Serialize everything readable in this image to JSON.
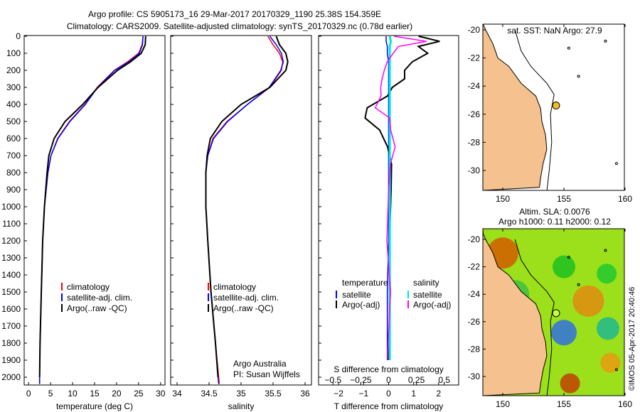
{
  "title": {
    "line1": "Argo profile: CS 5905173_16 29-Mar-2017 20170329_1190 25.38S 154.359E",
    "line2": "Climatology: CARS2009. Satellite-adjusted climatology: synTS_20170329.nc (0.78d earlier)"
  },
  "colors": {
    "climatology": "#ff0000",
    "satellite": "#0000ff",
    "argo": "#000000",
    "sal_sat": "#00e5e5",
    "sal_argo": "#ff00ff",
    "land": "#f5c18f"
  },
  "chart_data": [
    {
      "type": "line",
      "name": "temperature",
      "xlabel": "temperature (deg C)",
      "xlim": [
        -1,
        31
      ],
      "ylim": [
        2050,
        0
      ],
      "xticks": [
        "0",
        "5",
        "10",
        "15",
        "20",
        "25",
        "30"
      ],
      "yticks": [
        "0",
        "100",
        "200",
        "300",
        "400",
        "500",
        "600",
        "700",
        "800",
        "900",
        "1000",
        "1100",
        "1200",
        "1300",
        "1400",
        "1500",
        "1600",
        "1700",
        "1800",
        "1900",
        "2000"
      ],
      "legend": [
        "climatology",
        "satellite-adj. clim.",
        "Argo(..raw -QC)"
      ],
      "depth": [
        0,
        50,
        100,
        150,
        200,
        300,
        400,
        500,
        600,
        700,
        800,
        1000,
        1200,
        1500,
        1800,
        2000,
        2040
      ],
      "series": [
        {
          "name": "climatology",
          "values": [
            26,
            25.8,
            25,
            22.5,
            19.5,
            15.6,
            12.8,
            9.3,
            6.6,
            5.1,
            4.4,
            3.6,
            3.2,
            2.9,
            2.6,
            2.5,
            2.5
          ]
        },
        {
          "name": "satellite-adj. clim.",
          "values": [
            26,
            25.9,
            25.2,
            22.8,
            19.6,
            15.7,
            12.9,
            9.4,
            6.7,
            5.1,
            4.4,
            3.6,
            3.2,
            2.9,
            2.6,
            2.5,
            2.5
          ]
        },
        {
          "name": "Argo(..raw -QC)",
          "values": [
            26.6,
            26.5,
            25.6,
            23.2,
            20.2,
            15.8,
            12.3,
            8.3,
            5.8,
            4.6,
            4.2,
            3.6,
            3.2,
            2.9,
            2.6,
            2.5,
            null
          ]
        }
      ]
    },
    {
      "type": "line",
      "name": "salinity",
      "xlabel": "salinity",
      "xlim": [
        33.9,
        36.1
      ],
      "ylim": [
        2050,
        0
      ],
      "xticks": [
        "34",
        "34.5",
        "35",
        "35.5",
        "36"
      ],
      "legend": [
        "climatology",
        "satellite-adj. clim.",
        "Argo(..raw -QC)"
      ],
      "annotation": [
        "Argo Australia",
        "PI: Susan Wijffels"
      ],
      "depth": [
        0,
        50,
        100,
        150,
        200,
        300,
        400,
        500,
        600,
        700,
        800,
        1000,
        1200,
        1500,
        1800,
        2000,
        2040
      ],
      "series": [
        {
          "name": "climatology",
          "values": [
            35.42,
            35.5,
            35.6,
            35.65,
            35.63,
            35.45,
            35.1,
            34.78,
            34.56,
            34.48,
            34.45,
            34.45,
            34.48,
            34.53,
            34.6,
            34.65,
            34.66
          ]
        },
        {
          "name": "satellite-adj. clim.",
          "values": [
            35.45,
            35.55,
            35.63,
            35.66,
            35.62,
            35.44,
            35.1,
            34.79,
            34.57,
            34.48,
            34.45,
            34.45,
            34.48,
            34.53,
            34.6,
            34.64,
            34.65
          ]
        },
        {
          "name": "Argo(..raw -QC)",
          "values": [
            35.55,
            35.6,
            35.7,
            35.73,
            35.7,
            35.45,
            35.0,
            34.7,
            34.52,
            34.47,
            34.45,
            34.45,
            34.48,
            34.53,
            34.6,
            34.64,
            null
          ]
        }
      ]
    },
    {
      "type": "line",
      "name": "differences",
      "xlabel": "T difference from climatology",
      "x2label": "S difference from climatology",
      "xlim": [
        -2.8,
        2.8
      ],
      "x2lim": [
        -0.63,
        0.63
      ],
      "xticks": [
        "-2",
        "-1",
        "0",
        "1",
        "2"
      ],
      "x2ticks": [
        "-0.5",
        "-0.25",
        "0",
        "0.25",
        "0.5"
      ],
      "legend_temperature": {
        "title": "temperature",
        "items": [
          "satellite",
          "Argo(-adj)"
        ]
      },
      "legend_salinity": {
        "title": "salinity",
        "items": [
          "satellite",
          "Argo(-adj)"
        ]
      },
      "depth": [
        0,
        30,
        60,
        100,
        150,
        200,
        250,
        300,
        350,
        420,
        480,
        550,
        650,
        750,
        900,
        1200,
        1500,
        1900
      ],
      "series": [
        {
          "name": "T satellite",
          "axis": "T",
          "values": [
            -0.1,
            -0.1,
            -0.05,
            -0.05,
            0,
            0,
            0,
            0,
            0,
            0,
            0,
            0,
            0,
            0,
            0,
            0,
            -0.05,
            -0.05
          ]
        },
        {
          "name": "T Argo(-adj)",
          "axis": "T",
          "values": [
            1.2,
            2.1,
            1.2,
            1.6,
            1.0,
            0.7,
            0.7,
            0.2,
            0.0,
            -0.8,
            -1.0,
            -0.4,
            -0.1,
            0.1,
            0.1,
            0.05,
            0.05,
            0.0
          ]
        },
        {
          "name": "S satellite",
          "axis": "S",
          "values": [
            0.01,
            0.02,
            0.01,
            0.01,
            0.01,
            0.01,
            0.01,
            0.01,
            0.01,
            0.01,
            0.01,
            0.01,
            0.01,
            0.01,
            0.01,
            0.01,
            0.01,
            0.01
          ]
        },
        {
          "name": "S Argo(-adj)",
          "axis": "S",
          "values": [
            0.05,
            0.4,
            0.1,
            0.08,
            0.04,
            0.02,
            0.0,
            -0.02,
            -0.03,
            -0.06,
            -0.05,
            -0.02,
            0.0,
            0.0,
            0.0,
            0.0,
            0.0,
            0.0
          ]
        }
      ]
    }
  ],
  "map_sst": {
    "title": "sat. SST: NaN Argo: 27.9",
    "xticks": [
      "150",
      "155",
      "160"
    ],
    "yticks": [
      "-20",
      "-22",
      "-24",
      "-26",
      "-28",
      "-30"
    ],
    "argo_lon": 154.359,
    "argo_lat": -25.38
  },
  "map_sla": {
    "title1": "Altim. SLA: 0.0076",
    "title2": "Argo h1000: 0.11 h2000: 0.12",
    "xticks": [
      "150",
      "155",
      "160"
    ],
    "yticks": [
      "-20",
      "-22",
      "-24",
      "-26",
      "-28",
      "-30"
    ]
  },
  "coastline": [
    [
      148.4,
      -19.6
    ],
    [
      148.6,
      -20
    ],
    [
      149.2,
      -21
    ],
    [
      149.6,
      -22
    ],
    [
      150.5,
      -22.6
    ],
    [
      151.5,
      -23.8
    ],
    [
      152.7,
      -24.7
    ],
    [
      153.1,
      -25.6
    ],
    [
      153.2,
      -26.5
    ],
    [
      153.5,
      -27.5
    ],
    [
      153.6,
      -28.5
    ],
    [
      153.3,
      -29.5
    ],
    [
      153.1,
      -30.5
    ],
    [
      153,
      -31.2
    ]
  ],
  "credit": "©IMOS 05-Apr-2017 20:40:46"
}
